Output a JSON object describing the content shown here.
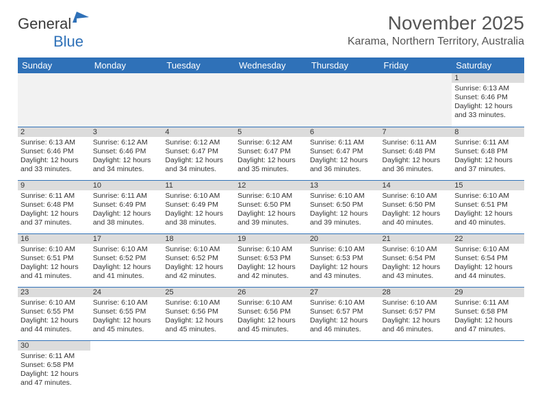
{
  "logo": {
    "text_dark": "General",
    "text_blue": "Blue"
  },
  "title": {
    "month": "November 2025",
    "location": "Karama, Northern Territory, Australia"
  },
  "colors": {
    "header_bg": "#2f71b8",
    "header_fg": "#ffffff",
    "daynum_bg": "#dcdcdc",
    "border": "#2f71b8",
    "empty_bg": "#f2f2f2",
    "text": "#333333",
    "logo_blue": "#2f71b8"
  },
  "weekdays": [
    "Sunday",
    "Monday",
    "Tuesday",
    "Wednesday",
    "Thursday",
    "Friday",
    "Saturday"
  ],
  "first_weekday_index": 6,
  "days": [
    {
      "n": 1,
      "sunrise": "6:13 AM",
      "sunset": "6:46 PM",
      "daylight": "12 hours and 33 minutes."
    },
    {
      "n": 2,
      "sunrise": "6:13 AM",
      "sunset": "6:46 PM",
      "daylight": "12 hours and 33 minutes."
    },
    {
      "n": 3,
      "sunrise": "6:12 AM",
      "sunset": "6:46 PM",
      "daylight": "12 hours and 34 minutes."
    },
    {
      "n": 4,
      "sunrise": "6:12 AM",
      "sunset": "6:47 PM",
      "daylight": "12 hours and 34 minutes."
    },
    {
      "n": 5,
      "sunrise": "6:12 AM",
      "sunset": "6:47 PM",
      "daylight": "12 hours and 35 minutes."
    },
    {
      "n": 6,
      "sunrise": "6:11 AM",
      "sunset": "6:47 PM",
      "daylight": "12 hours and 36 minutes."
    },
    {
      "n": 7,
      "sunrise": "6:11 AM",
      "sunset": "6:48 PM",
      "daylight": "12 hours and 36 minutes."
    },
    {
      "n": 8,
      "sunrise": "6:11 AM",
      "sunset": "6:48 PM",
      "daylight": "12 hours and 37 minutes."
    },
    {
      "n": 9,
      "sunrise": "6:11 AM",
      "sunset": "6:48 PM",
      "daylight": "12 hours and 37 minutes."
    },
    {
      "n": 10,
      "sunrise": "6:11 AM",
      "sunset": "6:49 PM",
      "daylight": "12 hours and 38 minutes."
    },
    {
      "n": 11,
      "sunrise": "6:10 AM",
      "sunset": "6:49 PM",
      "daylight": "12 hours and 38 minutes."
    },
    {
      "n": 12,
      "sunrise": "6:10 AM",
      "sunset": "6:50 PM",
      "daylight": "12 hours and 39 minutes."
    },
    {
      "n": 13,
      "sunrise": "6:10 AM",
      "sunset": "6:50 PM",
      "daylight": "12 hours and 39 minutes."
    },
    {
      "n": 14,
      "sunrise": "6:10 AM",
      "sunset": "6:50 PM",
      "daylight": "12 hours and 40 minutes."
    },
    {
      "n": 15,
      "sunrise": "6:10 AM",
      "sunset": "6:51 PM",
      "daylight": "12 hours and 40 minutes."
    },
    {
      "n": 16,
      "sunrise": "6:10 AM",
      "sunset": "6:51 PM",
      "daylight": "12 hours and 41 minutes."
    },
    {
      "n": 17,
      "sunrise": "6:10 AM",
      "sunset": "6:52 PM",
      "daylight": "12 hours and 41 minutes."
    },
    {
      "n": 18,
      "sunrise": "6:10 AM",
      "sunset": "6:52 PM",
      "daylight": "12 hours and 42 minutes."
    },
    {
      "n": 19,
      "sunrise": "6:10 AM",
      "sunset": "6:53 PM",
      "daylight": "12 hours and 42 minutes."
    },
    {
      "n": 20,
      "sunrise": "6:10 AM",
      "sunset": "6:53 PM",
      "daylight": "12 hours and 43 minutes."
    },
    {
      "n": 21,
      "sunrise": "6:10 AM",
      "sunset": "6:54 PM",
      "daylight": "12 hours and 43 minutes."
    },
    {
      "n": 22,
      "sunrise": "6:10 AM",
      "sunset": "6:54 PM",
      "daylight": "12 hours and 44 minutes."
    },
    {
      "n": 23,
      "sunrise": "6:10 AM",
      "sunset": "6:55 PM",
      "daylight": "12 hours and 44 minutes."
    },
    {
      "n": 24,
      "sunrise": "6:10 AM",
      "sunset": "6:55 PM",
      "daylight": "12 hours and 45 minutes."
    },
    {
      "n": 25,
      "sunrise": "6:10 AM",
      "sunset": "6:56 PM",
      "daylight": "12 hours and 45 minutes."
    },
    {
      "n": 26,
      "sunrise": "6:10 AM",
      "sunset": "6:56 PM",
      "daylight": "12 hours and 45 minutes."
    },
    {
      "n": 27,
      "sunrise": "6:10 AM",
      "sunset": "6:57 PM",
      "daylight": "12 hours and 46 minutes."
    },
    {
      "n": 28,
      "sunrise": "6:10 AM",
      "sunset": "6:57 PM",
      "daylight": "12 hours and 46 minutes."
    },
    {
      "n": 29,
      "sunrise": "6:11 AM",
      "sunset": "6:58 PM",
      "daylight": "12 hours and 47 minutes."
    },
    {
      "n": 30,
      "sunrise": "6:11 AM",
      "sunset": "6:58 PM",
      "daylight": "12 hours and 47 minutes."
    }
  ],
  "labels": {
    "sunrise": "Sunrise:",
    "sunset": "Sunset:",
    "daylight": "Daylight:"
  }
}
